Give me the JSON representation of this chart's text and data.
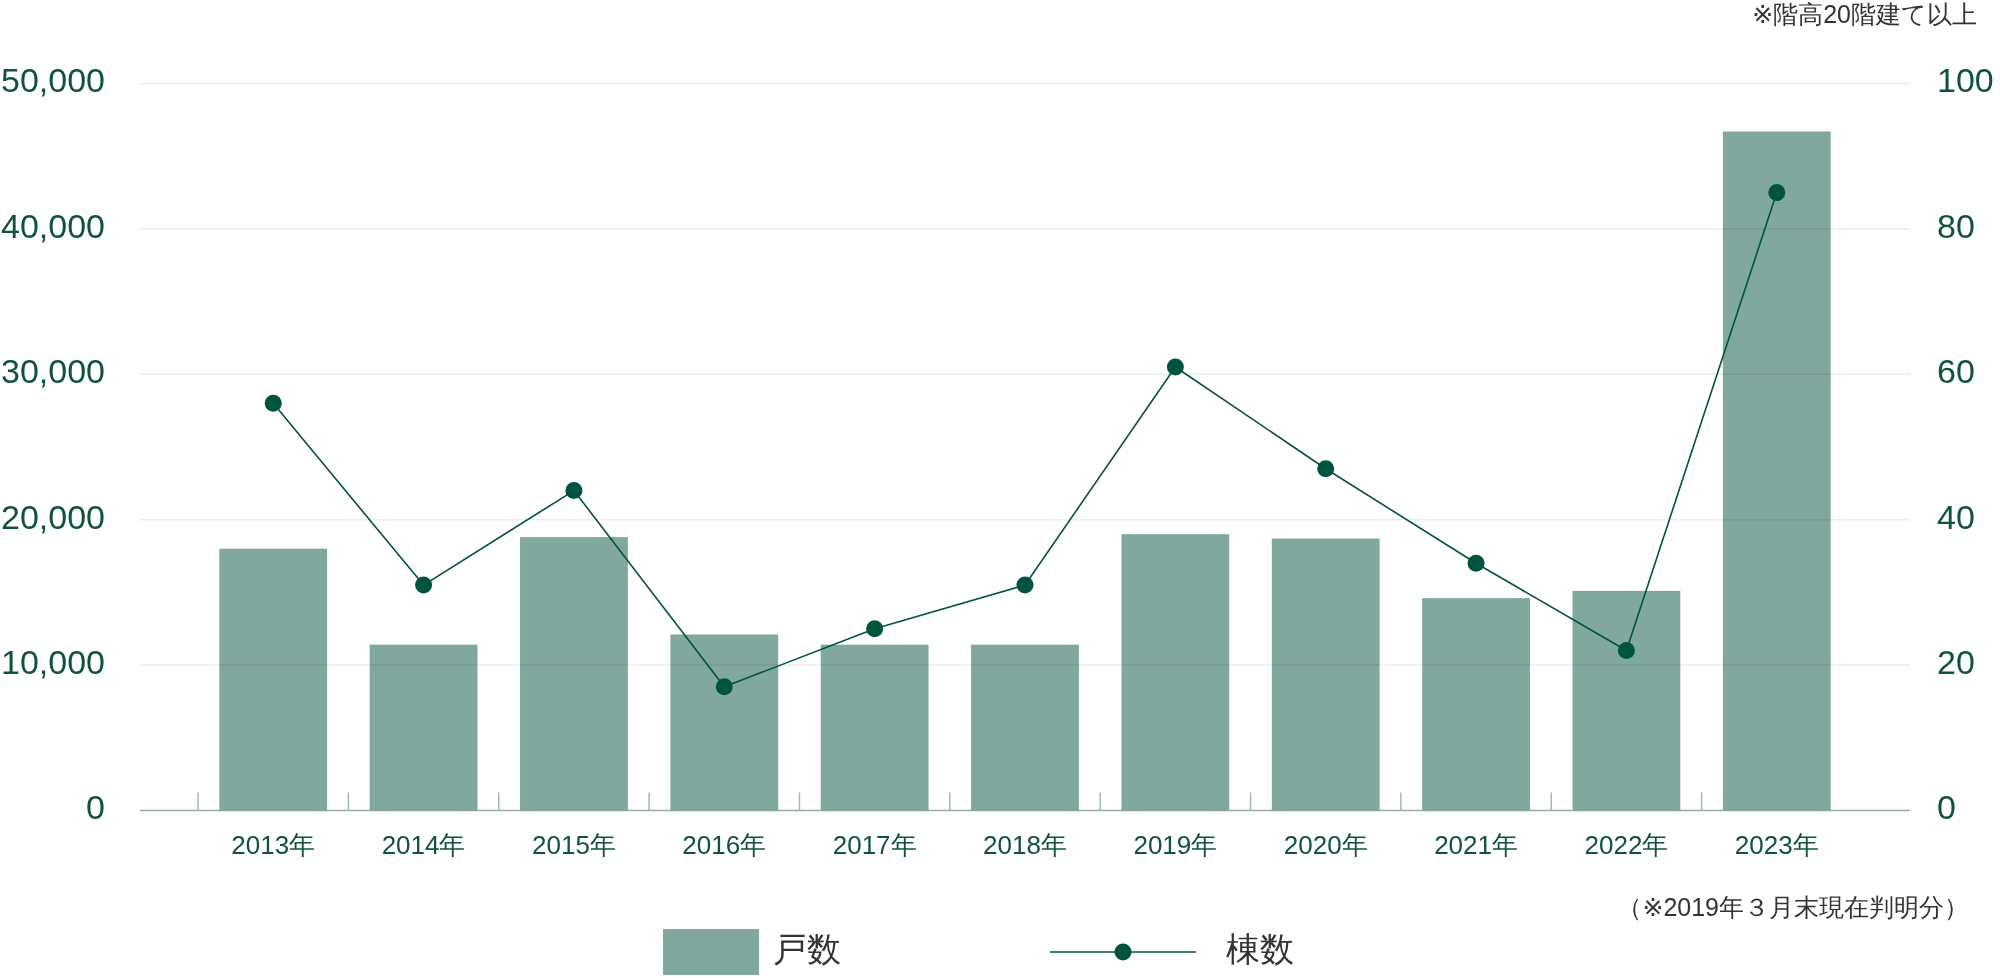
{
  "chart_data": {
    "type": "bar",
    "categories": [
      "2013年",
      "2014年",
      "2015年",
      "2016年",
      "2017年",
      "2018年",
      "2019年",
      "2020年",
      "2021年",
      "2022年",
      "2023年"
    ],
    "series": [
      {
        "name": "戸数",
        "type": "bar",
        "color": "#80a89f",
        "values": [
          18000,
          11400,
          18800,
          12100,
          11400,
          11400,
          19000,
          18700,
          14600,
          15100,
          46700
        ]
      },
      {
        "name": "棟数",
        "type": "line",
        "axis": "y2",
        "color": "#00543f",
        "values": [
          56,
          31,
          44,
          17,
          25,
          31,
          61,
          47,
          34,
          22,
          85
        ]
      }
    ],
    "ylim": [
      0,
      50000
    ],
    "yticks": [
      0,
      {
        "value": 10000,
        "label": "10,000"
      },
      {
        "value": 20000,
        "label": "20,000"
      },
      {
        "value": 30000,
        "label": "30,000"
      },
      {
        "value": 40000,
        "label": "40,000"
      },
      {
        "value": 50000,
        "label": "50,000"
      }
    ],
    "y2lim": [
      0,
      100
    ],
    "y2ticks": [
      0,
      20,
      40,
      60,
      80,
      100
    ],
    "grid": "y",
    "legend": "bottom",
    "marker": "circle",
    "line_style": "solid",
    "annotations": [
      "※階高20階建て以上",
      "（※2019年３月末現在判明分）"
    ]
  }
}
